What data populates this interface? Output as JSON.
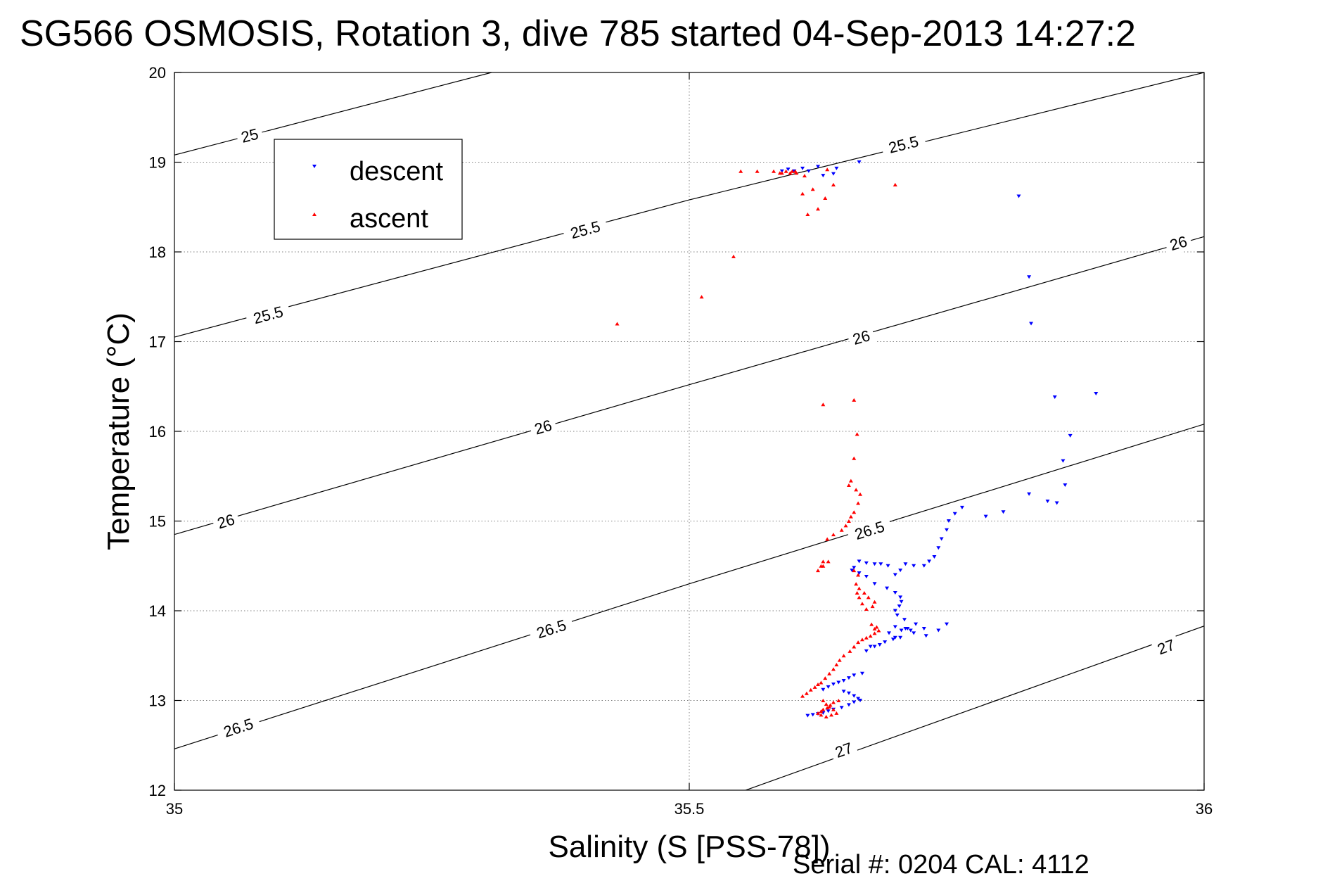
{
  "title": "SG566 OSMOSIS, Rotation 3, dive 785 started 04-Sep-2013 14:27:2",
  "footer": "Serial #: 0204  CAL: 4112",
  "chart_data": {
    "type": "scatter",
    "title": "SG566 OSMOSIS, Rotation 3, dive 785 started 04-Sep-2013 14:27:2",
    "xlabel": "Salinity (S [PSS-78])",
    "ylabel": "Temperature (°C)",
    "xlim": [
      35,
      36
    ],
    "ylim": [
      12,
      20
    ],
    "x_ticks": [
      35,
      35.5,
      36
    ],
    "x_tick_labels": [
      "35",
      "35.5",
      "36"
    ],
    "y_ticks": [
      12,
      13,
      14,
      15,
      16,
      17,
      18,
      19,
      20
    ],
    "y_tick_labels": [
      "12",
      "13",
      "14",
      "15",
      "16",
      "17",
      "18",
      "19",
      "20"
    ],
    "grid": true,
    "legend": {
      "placement": "top-left",
      "entries": [
        "descent",
        "ascent"
      ]
    },
    "colors": {
      "descent": "#0000ff",
      "ascent": "#ff0000",
      "contour": "#000000",
      "grid": "#7f7f7f"
    },
    "contours": [
      {
        "level": "25",
        "x": [
          35,
          35.308
        ],
        "y": [
          19.08,
          20.0
        ],
        "labels": [
          {
            "text": "25",
            "x": 35.073,
            "y": 19.3
          }
        ]
      },
      {
        "level": "25.5",
        "x": [
          35,
          35.5,
          36
        ],
        "y": [
          17.05,
          18.58,
          20.0
        ],
        "labels": [
          {
            "text": "25.5",
            "x": 35.091,
            "y": 17.3
          },
          {
            "text": "25.5",
            "x": 35.399,
            "y": 18.25
          },
          {
            "text": "25.5",
            "x": 35.708,
            "y": 19.2
          }
        ]
      },
      {
        "level": "26",
        "x": [
          35,
          35.5,
          36
        ],
        "y": [
          14.85,
          16.52,
          18.17
        ],
        "labels": [
          {
            "text": "26",
            "x": 35.05,
            "y": 15.0
          },
          {
            "text": "26",
            "x": 35.358,
            "y": 16.05
          },
          {
            "text": "26",
            "x": 35.667,
            "y": 17.05
          },
          {
            "text": "26",
            "x": 35.975,
            "y": 18.1
          }
        ]
      },
      {
        "level": "26.5",
        "x": [
          35,
          35.5,
          36
        ],
        "y": [
          12.46,
          14.3,
          16.08
        ],
        "labels": [
          {
            "text": "26.5",
            "x": 35.062,
            "y": 12.7
          },
          {
            "text": "26.5",
            "x": 35.366,
            "y": 13.8
          },
          {
            "text": "26.5",
            "x": 35.675,
            "y": 14.9
          }
        ]
      },
      {
        "level": "27",
        "x": [
          35.55,
          36
        ],
        "y": [
          11.98,
          13.83
        ],
        "labels": [
          {
            "text": "27",
            "x": 35.65,
            "y": 12.45
          },
          {
            "text": "27",
            "x": 35.963,
            "y": 13.6
          }
        ]
      }
    ],
    "series": [
      {
        "name": "descent",
        "marker": "triangle-down",
        "color": "#0000ff",
        "x": [
          35.59,
          35.596,
          35.602,
          35.61,
          35.616,
          35.625,
          35.63,
          35.64,
          35.643,
          35.665,
          35.82,
          35.83,
          35.832,
          35.855,
          35.895,
          35.87,
          35.863,
          35.865,
          35.857,
          35.848,
          35.83,
          35.805,
          35.788,
          35.765,
          35.758,
          35.752,
          35.75,
          35.745,
          35.742,
          35.738,
          35.733,
          35.728,
          35.718,
          35.71,
          35.705,
          35.7,
          35.693,
          35.686,
          35.68,
          35.672,
          35.665,
          35.66,
          35.658,
          35.665,
          35.672,
          35.68,
          35.692,
          35.7,
          35.705,
          35.706,
          35.704,
          35.7,
          35.702,
          35.709,
          35.72,
          35.728,
          35.715,
          35.71,
          35.7,
          35.694,
          35.7,
          35.706,
          35.712,
          35.718,
          35.73,
          35.742,
          35.75,
          35.705,
          35.698,
          35.69,
          35.685,
          35.68,
          35.676,
          35.672,
          35.668,
          35.66,
          35.655,
          35.65,
          35.645,
          35.64,
          35.635,
          35.63,
          35.65,
          35.655,
          35.66,
          35.664,
          35.666,
          35.66,
          35.655,
          35.648,
          35.64,
          35.635,
          35.63,
          35.625,
          35.62,
          35.615
        ],
        "y": [
          18.9,
          18.92,
          18.9,
          18.93,
          18.9,
          18.95,
          18.85,
          18.87,
          18.93,
          19.0,
          18.62,
          17.72,
          17.2,
          16.38,
          16.42,
          15.95,
          15.67,
          15.4,
          15.2,
          15.22,
          15.3,
          15.1,
          15.05,
          15.15,
          15.08,
          15.0,
          14.9,
          14.8,
          14.7,
          14.6,
          14.55,
          14.5,
          14.5,
          14.52,
          14.45,
          14.4,
          14.5,
          14.52,
          14.52,
          14.53,
          14.55,
          14.48,
          14.45,
          14.42,
          14.38,
          14.3,
          14.25,
          14.2,
          14.15,
          14.1,
          14.05,
          14.0,
          13.95,
          13.9,
          13.85,
          13.8,
          13.78,
          13.8,
          13.82,
          13.75,
          13.7,
          13.78,
          13.8,
          13.75,
          13.72,
          13.78,
          13.85,
          13.7,
          13.68,
          13.65,
          13.62,
          13.6,
          13.6,
          13.55,
          13.3,
          13.28,
          13.25,
          13.22,
          13.2,
          13.18,
          13.15,
          13.12,
          13.1,
          13.08,
          13.05,
          13.02,
          13.0,
          12.98,
          12.95,
          12.92,
          12.9,
          12.88,
          12.86,
          12.85,
          12.84,
          12.83
        ]
      },
      {
        "name": "ascent",
        "marker": "triangle-up",
        "color": "#ff0000",
        "x": [
          35.43,
          35.512,
          35.543,
          35.55,
          35.566,
          35.582,
          35.588,
          35.59,
          35.594,
          35.598,
          35.6,
          35.603,
          35.604,
          35.612,
          35.61,
          35.615,
          35.62,
          35.625,
          35.634,
          35.632,
          35.64,
          35.7,
          35.63,
          35.66,
          35.663,
          35.66,
          35.657,
          35.655,
          35.662,
          35.666,
          35.664,
          35.66,
          35.657,
          35.655,
          35.652,
          35.648,
          35.64,
          35.634,
          35.63,
          35.628,
          35.625,
          35.63,
          35.635,
          35.66,
          35.664,
          35.662,
          35.665,
          35.67,
          35.674,
          35.68,
          35.678,
          35.672,
          35.668,
          35.665,
          35.663,
          35.677,
          35.68,
          35.682,
          35.684,
          35.68,
          35.676,
          35.672,
          35.668,
          35.664,
          35.66,
          35.656,
          35.65,
          35.646,
          35.643,
          35.64,
          35.636,
          35.632,
          35.628,
          35.625,
          35.622,
          35.618,
          35.614,
          35.61,
          35.645,
          35.64,
          35.637,
          35.634,
          35.63,
          35.628,
          35.625,
          35.628,
          35.633,
          35.638,
          35.643,
          35.64,
          35.636,
          35.633,
          35.63
        ],
        "y": [
          17.2,
          17.5,
          17.95,
          18.9,
          18.9,
          18.9,
          18.88,
          18.88,
          18.9,
          18.88,
          18.9,
          18.9,
          18.88,
          18.85,
          18.65,
          18.42,
          18.7,
          18.48,
          18.92,
          18.6,
          18.75,
          18.75,
          16.3,
          16.35,
          15.97,
          15.7,
          15.45,
          15.4,
          15.35,
          15.3,
          15.2,
          15.1,
          15.05,
          15.0,
          14.95,
          14.9,
          14.85,
          14.8,
          14.55,
          14.5,
          14.45,
          14.5,
          14.55,
          14.45,
          14.4,
          14.3,
          14.25,
          14.2,
          14.15,
          14.1,
          14.05,
          14.02,
          14.08,
          14.15,
          14.2,
          13.85,
          13.8,
          13.82,
          13.78,
          13.75,
          13.72,
          13.7,
          13.68,
          13.65,
          13.6,
          13.55,
          13.5,
          13.45,
          13.4,
          13.35,
          13.3,
          13.25,
          13.2,
          13.18,
          13.15,
          13.12,
          13.08,
          13.05,
          13.0,
          12.98,
          12.95,
          12.92,
          12.9,
          12.88,
          12.86,
          12.84,
          12.82,
          12.84,
          12.86,
          12.9,
          12.93,
          12.96,
          13.0
        ]
      }
    ]
  }
}
